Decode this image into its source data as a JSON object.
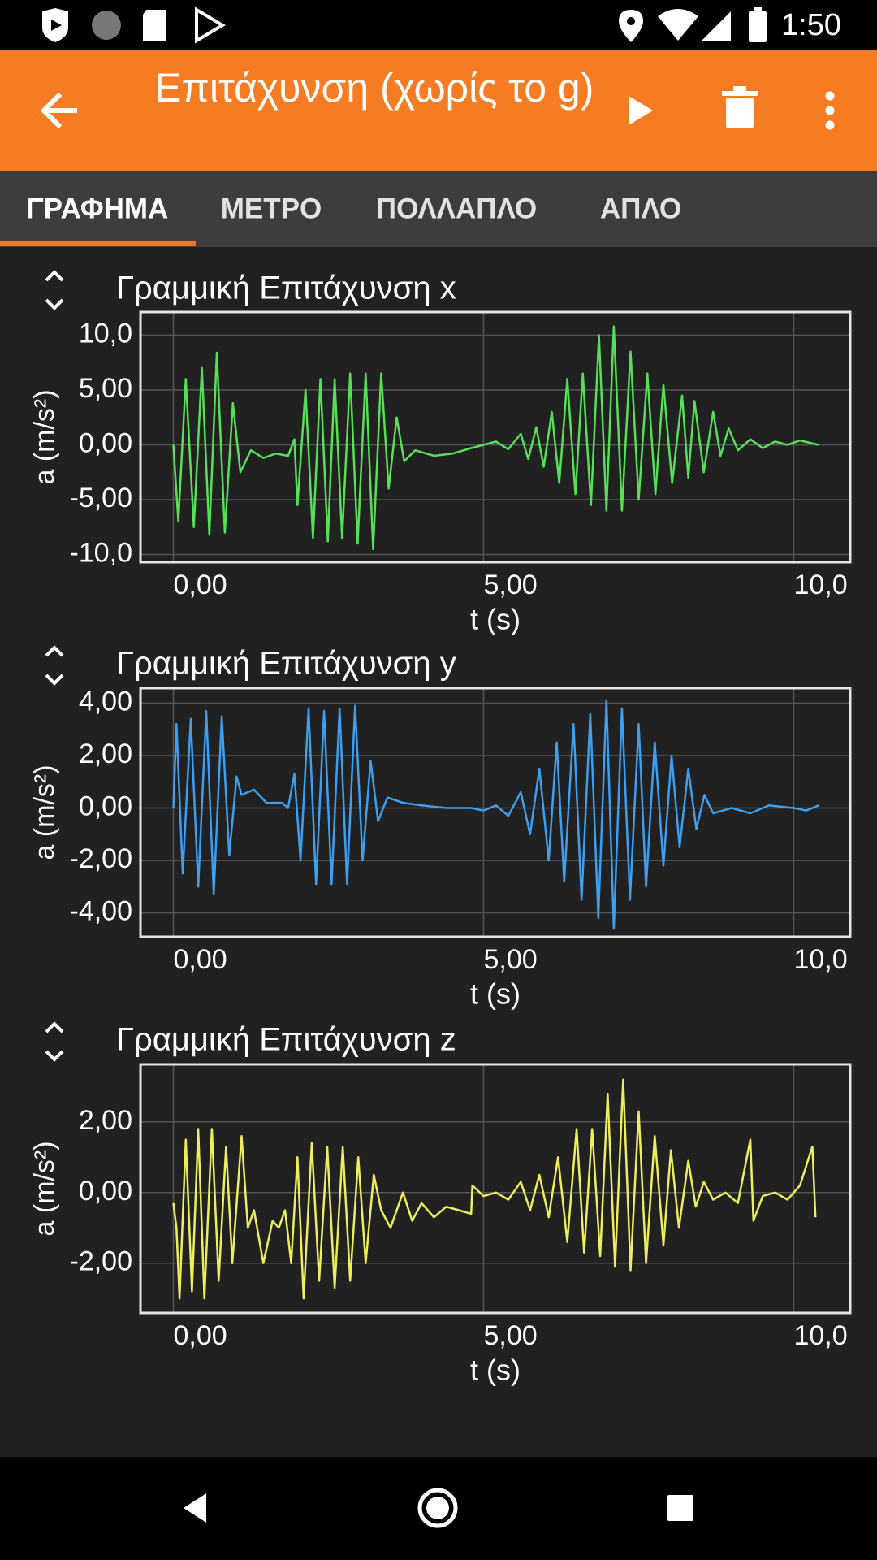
{
  "status_bar": {
    "time": "1:50"
  },
  "toolbar": {
    "title": "Επιτάχυνση (χωρίς το g)"
  },
  "tabs": [
    "ΓΡΑΦΗΜΑ",
    "ΜΕΤΡΟ",
    "ΠΟΛΛΑΠΛΟ",
    "ΑΠΛΟ"
  ],
  "chart_data": [
    {
      "type": "line",
      "title": "Γραμμική Επιτάχυνση x",
      "xlabel": "t (s)",
      "ylabel": "a (m/s²)",
      "color": "#55e055",
      "grid": true,
      "xlim": [
        -0.53,
        10.91
      ],
      "ylim": [
        -10.7,
        12.1
      ],
      "xticks": [
        {
          "value": 0,
          "label": "0,00"
        },
        {
          "value": 5,
          "label": "5,00"
        },
        {
          "value": 10,
          "label": "10,0"
        }
      ],
      "yticks": [
        {
          "value": 10,
          "label": "10,0"
        },
        {
          "value": 5,
          "label": "5,00"
        },
        {
          "value": 0,
          "label": "0,00"
        },
        {
          "value": -5,
          "label": "-5,00"
        },
        {
          "value": -10,
          "label": "-10,0"
        }
      ],
      "x": [
        0,
        0.08,
        0.2,
        0.33,
        0.46,
        0.58,
        0.7,
        0.83,
        0.96,
        1.08,
        1.25,
        1.45,
        1.65,
        1.85,
        1.95,
        2.0,
        2.13,
        2.25,
        2.37,
        2.49,
        2.6,
        2.72,
        2.85,
        2.97,
        3.1,
        3.22,
        3.35,
        3.47,
        3.6,
        3.72,
        3.9,
        4.2,
        4.5,
        4.8,
        5.0,
        5.2,
        5.4,
        5.6,
        5.72,
        5.85,
        5.97,
        6.1,
        6.22,
        6.35,
        6.48,
        6.6,
        6.73,
        6.86,
        6.98,
        7.1,
        7.23,
        7.37,
        7.5,
        7.64,
        7.77,
        7.9,
        8.04,
        8.2,
        8.3,
        8.4,
        8.55,
        8.7,
        8.82,
        8.95,
        9.1,
        9.3,
        9.5,
        9.7,
        9.9,
        10.1,
        10.4
      ],
      "values": [
        0,
        -7,
        6,
        -7.5,
        7,
        -8.2,
        8.4,
        -8,
        3.8,
        -2.5,
        -0.5,
        -1.2,
        -0.8,
        -1,
        0.5,
        -5.5,
        5,
        -8.5,
        6,
        -8.8,
        6,
        -8.5,
        6.5,
        -9,
        6.5,
        -9.5,
        6.5,
        -4,
        2.5,
        -1.5,
        -0.5,
        -1,
        -0.8,
        -0.3,
        0,
        0.3,
        -0.4,
        1,
        -1.3,
        1.6,
        -2,
        3,
        -3.5,
        6,
        -4.5,
        6.5,
        -5.5,
        10,
        -6,
        10.8,
        -6,
        8.5,
        -5,
        6.5,
        -4.5,
        5.5,
        -3.5,
        4.5,
        -3,
        4,
        -2.5,
        3,
        -1,
        1.5,
        -0.5,
        0.5,
        -0.3,
        0.3,
        0,
        0.4,
        0
      ]
    },
    {
      "type": "line",
      "title": "Γραμμική Επιτάχυνση y",
      "xlabel": "t (s)",
      "ylabel": "a (m/s²)",
      "color": "#3d9ff0",
      "grid": true,
      "xlim": [
        -0.53,
        10.91
      ],
      "ylim": [
        -4.91,
        4.57
      ],
      "xticks": [
        {
          "value": 0,
          "label": "0,00"
        },
        {
          "value": 5,
          "label": "5,00"
        },
        {
          "value": 10,
          "label": "10,0"
        }
      ],
      "yticks": [
        {
          "value": 4,
          "label": "4,00"
        },
        {
          "value": 2,
          "label": "2,00"
        },
        {
          "value": 0,
          "label": "0,00"
        },
        {
          "value": -2,
          "label": "-2,00"
        },
        {
          "value": -4,
          "label": "-4,00"
        }
      ],
      "x": [
        0,
        0.05,
        0.15,
        0.28,
        0.4,
        0.53,
        0.65,
        0.78,
        0.9,
        1.02,
        1.1,
        1.3,
        1.5,
        1.75,
        1.85,
        1.95,
        2.05,
        2.18,
        2.3,
        2.43,
        2.55,
        2.68,
        2.8,
        2.93,
        3.05,
        3.18,
        3.3,
        3.45,
        3.7,
        4.0,
        4.4,
        4.8,
        5.0,
        5.2,
        5.4,
        5.6,
        5.75,
        5.9,
        6.05,
        6.18,
        6.3,
        6.45,
        6.58,
        6.72,
        6.85,
        6.98,
        7.1,
        7.23,
        7.36,
        7.5,
        7.62,
        7.76,
        7.9,
        8.03,
        8.16,
        8.3,
        8.43,
        8.56,
        8.7,
        9.0,
        9.3,
        9.6,
        10.0,
        10.2,
        10.4
      ],
      "values": [
        0,
        3.2,
        -2.5,
        3.4,
        -3,
        3.7,
        -3.3,
        3.5,
        -1.8,
        1.2,
        0.5,
        0.7,
        0.2,
        0.2,
        0,
        1.3,
        -2,
        3.8,
        -2.9,
        3.7,
        -2.9,
        3.8,
        -2.9,
        3.9,
        -2,
        1.8,
        -0.5,
        0.4,
        0.2,
        0.1,
        0,
        0,
        -0.1,
        0.1,
        -0.3,
        0.6,
        -1,
        1.5,
        -2,
        2.5,
        -2.8,
        3.2,
        -3.5,
        3.6,
        -4.2,
        4.1,
        -4.6,
        3.8,
        -3.5,
        3.2,
        -3,
        2.5,
        -2.2,
        2,
        -1.5,
        1.5,
        -0.8,
        0.5,
        -0.2,
        0,
        -0.2,
        0.1,
        0,
        -0.1,
        0.1
      ]
    },
    {
      "type": "line",
      "title": "Γραμμική Επιτάχυνση z",
      "xlabel": "t (s)",
      "ylabel": "a (m/s²)",
      "color": "#eeee5a",
      "grid": true,
      "xlim": [
        -0.53,
        10.91
      ],
      "ylim": [
        -3.41,
        3.63
      ],
      "xticks": [
        {
          "value": 0,
          "label": "0,00"
        },
        {
          "value": 5,
          "label": "5,00"
        },
        {
          "value": 10,
          "label": "10,0"
        }
      ],
      "yticks": [
        {
          "value": 2,
          "label": "2,00"
        },
        {
          "value": 0,
          "label": "0,00"
        },
        {
          "value": -2,
          "label": "-2,00"
        }
      ],
      "x": [
        0,
        0.05,
        0.1,
        0.2,
        0.3,
        0.4,
        0.5,
        0.62,
        0.73,
        0.85,
        0.95,
        1.1,
        1.2,
        1.3,
        1.45,
        1.6,
        1.7,
        1.8,
        1.9,
        2.0,
        2.1,
        2.23,
        2.35,
        2.48,
        2.6,
        2.73,
        2.85,
        2.98,
        3.1,
        3.23,
        3.35,
        3.5,
        3.7,
        3.85,
        4.0,
        4.2,
        4.4,
        4.6,
        4.8,
        4.82,
        5.0,
        5.2,
        5.4,
        5.6,
        5.75,
        5.9,
        6.05,
        6.2,
        6.35,
        6.5,
        6.62,
        6.75,
        6.88,
        7.0,
        7.12,
        7.25,
        7.37,
        7.5,
        7.62,
        7.76,
        7.9,
        8.02,
        8.15,
        8.3,
        8.42,
        8.55,
        8.7,
        8.9,
        9.1,
        9.3,
        9.35,
        9.5,
        9.7,
        9.9,
        10.1,
        10.3,
        10.35
      ],
      "values": [
        -0.3,
        -1,
        -3,
        1.5,
        -2.8,
        1.8,
        -3,
        1.8,
        -2.5,
        1.3,
        -2,
        1.6,
        -1,
        -0.5,
        -2,
        -0.8,
        -1,
        -0.5,
        -2,
        1,
        -3,
        1.4,
        -2.5,
        1.3,
        -2.7,
        1.3,
        -2.5,
        1,
        -2,
        0.5,
        -0.5,
        -1,
        0,
        -0.8,
        -0.3,
        -0.7,
        -0.4,
        -0.5,
        -0.6,
        0.2,
        -0.1,
        0,
        -0.2,
        0.3,
        -0.5,
        0.5,
        -0.7,
        1,
        -1.4,
        1.8,
        -1.7,
        1.8,
        -1.8,
        2.8,
        -2.1,
        3.2,
        -2.2,
        2.3,
        -2,
        1.6,
        -1.5,
        1.2,
        -1,
        0.9,
        -0.4,
        0.3,
        -0.2,
        0,
        -0.3,
        1.5,
        -0.8,
        -0.1,
        0,
        -0.2,
        0.2,
        1.3,
        -0.7
      ]
    }
  ]
}
